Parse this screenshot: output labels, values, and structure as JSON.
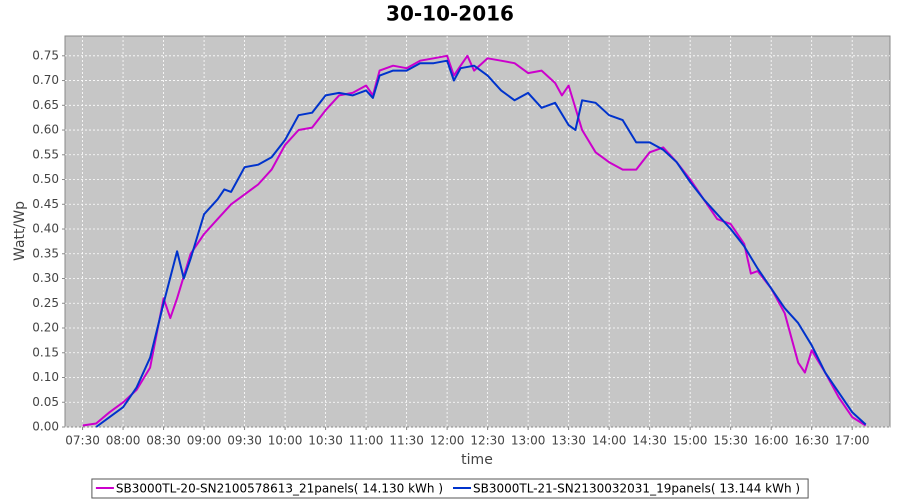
{
  "chart_data": {
    "type": "line",
    "title": "30-10-2016",
    "x_label": "time",
    "y_label": "Watt/Wp",
    "xlim": [
      "07:17",
      "17:28"
    ],
    "xticks": [
      "07:30",
      "08:00",
      "08:30",
      "09:00",
      "09:30",
      "10:00",
      "10:30",
      "11:00",
      "11:30",
      "12:00",
      "12:30",
      "13:00",
      "13:30",
      "14:00",
      "14:30",
      "15:00",
      "15:30",
      "16:00",
      "16:30",
      "17:00"
    ],
    "ylim": [
      0,
      0.79
    ],
    "yticks": [
      {
        "value": 0,
        "label": "0.00"
      },
      {
        "value": 0.05,
        "label": "0.05"
      },
      {
        "value": 0.1,
        "label": "0.10"
      },
      {
        "value": 0.15,
        "label": "0.15"
      },
      {
        "value": 0.2,
        "label": "0.20"
      },
      {
        "value": 0.25,
        "label": "0.25"
      },
      {
        "value": 0.3,
        "label": "0.30"
      },
      {
        "value": 0.35,
        "label": "0.35"
      },
      {
        "value": 0.4,
        "label": "0.40"
      },
      {
        "value": 0.45,
        "label": "0.45"
      },
      {
        "value": 0.5,
        "label": "0.50"
      },
      {
        "value": 0.55,
        "label": "0.55"
      },
      {
        "value": 0.6,
        "label": "0.60"
      },
      {
        "value": 0.65,
        "label": "0.65"
      },
      {
        "value": 0.7,
        "label": "0.70"
      },
      {
        "value": 0.75,
        "label": "0.75"
      }
    ],
    "grid": true,
    "legend": "bottom",
    "series": [
      {
        "name": "SB3000TL-20-SN2100578613_21panels( 14.130 kWh )",
        "color": "#cc00cc",
        "x": [
          "07:30",
          "07:40",
          "07:50",
          "08:00",
          "08:10",
          "08:20",
          "08:30",
          "08:35",
          "08:40",
          "08:50",
          "09:00",
          "09:10",
          "09:20",
          "09:30",
          "09:40",
          "09:50",
          "10:00",
          "10:10",
          "10:20",
          "10:30",
          "10:40",
          "10:50",
          "11:00",
          "11:05",
          "11:10",
          "11:20",
          "11:30",
          "11:40",
          "11:50",
          "12:00",
          "12:05",
          "12:10",
          "12:15",
          "12:20",
          "12:30",
          "12:40",
          "12:50",
          "13:00",
          "13:10",
          "13:20",
          "13:25",
          "13:30",
          "13:40",
          "13:50",
          "14:00",
          "14:10",
          "14:20",
          "14:30",
          "14:40",
          "14:50",
          "15:00",
          "15:10",
          "15:20",
          "15:30",
          "15:40",
          "15:45",
          "15:50",
          "16:00",
          "16:10",
          "16:20",
          "16:25",
          "16:30",
          "16:40",
          "16:50",
          "17:00",
          "17:10"
        ],
        "values": [
          0.003,
          0.007,
          0.03,
          0.05,
          0.075,
          0.12,
          0.26,
          0.22,
          0.26,
          0.35,
          0.39,
          0.42,
          0.45,
          0.47,
          0.49,
          0.52,
          0.57,
          0.6,
          0.605,
          0.64,
          0.67,
          0.675,
          0.69,
          0.67,
          0.72,
          0.73,
          0.725,
          0.74,
          0.745,
          0.75,
          0.71,
          0.73,
          0.75,
          0.72,
          0.745,
          0.74,
          0.735,
          0.715,
          0.72,
          0.695,
          0.67,
          0.69,
          0.6,
          0.555,
          0.535,
          0.52,
          0.52,
          0.555,
          0.565,
          0.535,
          0.5,
          0.46,
          0.42,
          0.41,
          0.37,
          0.31,
          0.315,
          0.28,
          0.23,
          0.13,
          0.11,
          0.155,
          0.11,
          0.06,
          0.02,
          0.003
        ]
      },
      {
        "name": "SB3000TL-21-SN2130032031_19panels( 13.144 kWh )",
        "color": "#0033cc",
        "x": [
          "07:40",
          "07:50",
          "08:00",
          "08:10",
          "08:20",
          "08:30",
          "08:40",
          "08:45",
          "08:50",
          "09:00",
          "09:10",
          "09:15",
          "09:20",
          "09:30",
          "09:40",
          "09:50",
          "10:00",
          "10:10",
          "10:20",
          "10:30",
          "10:40",
          "10:50",
          "11:00",
          "11:05",
          "11:10",
          "11:20",
          "11:30",
          "11:40",
          "11:50",
          "12:00",
          "12:05",
          "12:10",
          "12:20",
          "12:30",
          "12:40",
          "12:50",
          "13:00",
          "13:10",
          "13:20",
          "13:30",
          "13:35",
          "13:40",
          "13:50",
          "14:00",
          "14:10",
          "14:20",
          "14:30",
          "14:40",
          "14:50",
          "15:00",
          "15:10",
          "15:20",
          "15:30",
          "15:40",
          "15:50",
          "16:00",
          "16:10",
          "16:20",
          "16:30",
          "16:40",
          "16:50",
          "17:00",
          "17:10"
        ],
        "values": [
          0.0,
          0.02,
          0.04,
          0.08,
          0.14,
          0.25,
          0.355,
          0.3,
          0.34,
          0.43,
          0.46,
          0.48,
          0.475,
          0.525,
          0.53,
          0.545,
          0.58,
          0.63,
          0.635,
          0.67,
          0.675,
          0.67,
          0.68,
          0.665,
          0.71,
          0.72,
          0.72,
          0.735,
          0.735,
          0.74,
          0.7,
          0.725,
          0.73,
          0.71,
          0.68,
          0.66,
          0.675,
          0.645,
          0.655,
          0.61,
          0.6,
          0.66,
          0.655,
          0.63,
          0.62,
          0.575,
          0.575,
          0.56,
          0.535,
          0.495,
          0.46,
          0.43,
          0.4,
          0.365,
          0.32,
          0.28,
          0.24,
          0.21,
          0.165,
          0.11,
          0.07,
          0.03,
          0.005
        ]
      }
    ]
  }
}
